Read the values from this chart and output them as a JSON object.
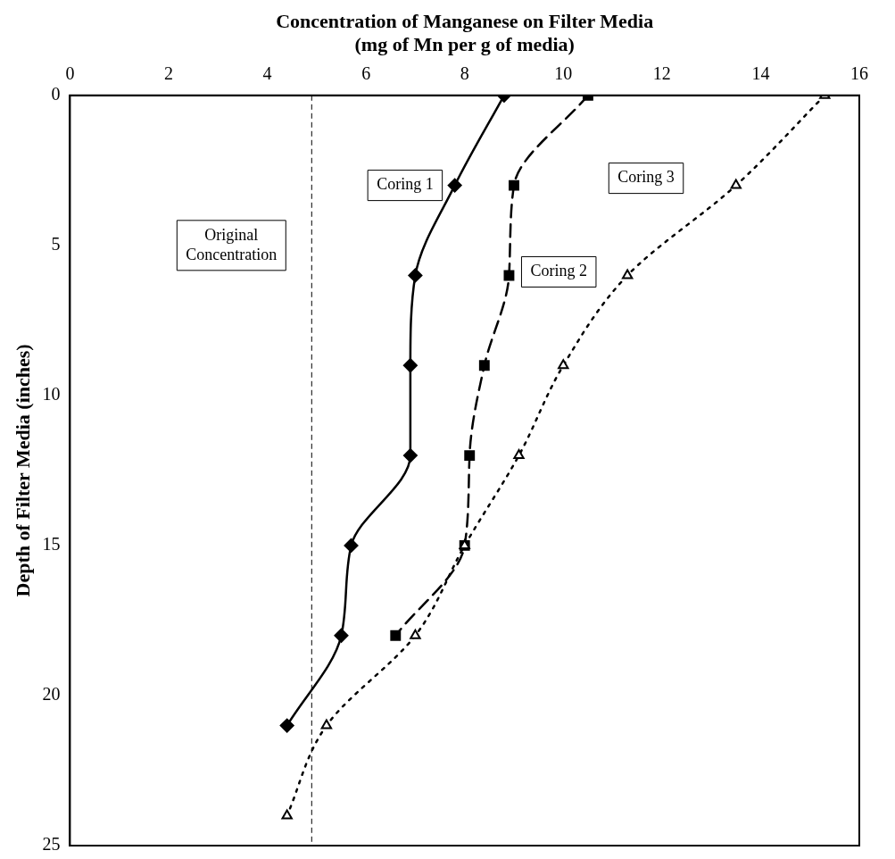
{
  "chart_data": {
    "type": "line",
    "xlabel": "Concentration of Manganese on Filter Media (mg of Mn per g of media)",
    "ylabel": "Depth of Filter Media (inches)",
    "xlim": [
      0,
      16
    ],
    "xticks": [
      0,
      2,
      4,
      6,
      8,
      10,
      12,
      14,
      16
    ],
    "ylim": [
      25,
      0
    ],
    "yticks": [
      0,
      5,
      10,
      15,
      20,
      25
    ],
    "grid": false,
    "legend": false,
    "series": [
      {
        "name": "Coring 1",
        "color": "#000000",
        "marker": "diamond",
        "line_style": "solid",
        "x": [
          8.8,
          7.8,
          7.0,
          6.9,
          6.9,
          5.7,
          5.5,
          4.4
        ],
        "values": [
          0,
          3,
          6,
          9,
          12,
          15,
          18,
          21
        ]
      },
      {
        "name": "Coring 2",
        "color": "#000000",
        "marker": "square",
        "line_style": "dashed",
        "x": [
          10.5,
          9.0,
          8.9,
          8.4,
          8.1,
          8.0,
          6.6
        ],
        "values": [
          0,
          3,
          6,
          9,
          12,
          15,
          18
        ]
      },
      {
        "name": "Coring 3",
        "color": "#000000",
        "marker": "triangle",
        "line_style": "dotted",
        "x": [
          15.3,
          13.5,
          11.3,
          10.0,
          9.1,
          8.0,
          7.0,
          5.2,
          4.4
        ],
        "values": [
          0,
          3,
          6,
          9,
          12,
          15,
          18,
          21,
          24
        ]
      }
    ],
    "ref_lines": [
      {
        "axis": "x",
        "value": 4.9,
        "label": "Original Concentration",
        "color": "#000000",
        "line_style": "dashed"
      }
    ]
  }
}
